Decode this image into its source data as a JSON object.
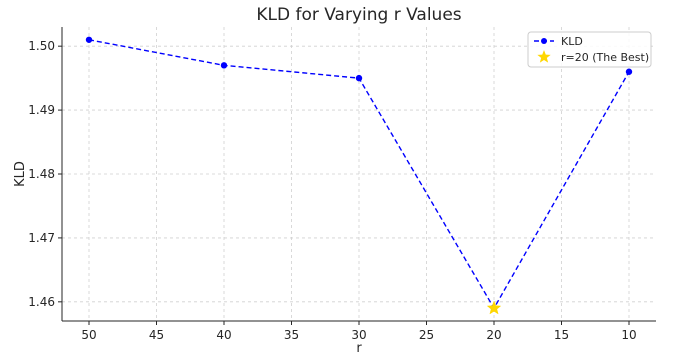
{
  "chart_data": {
    "type": "line",
    "title": "KLD for Varying r Values",
    "xlabel": "r",
    "ylabel": "KLD",
    "x_inverted": true,
    "xlim": [
      52.0,
      8.0
    ],
    "ylim": [
      1.457,
      1.503
    ],
    "x_ticks": [
      50,
      45,
      40,
      35,
      30,
      25,
      20,
      15,
      10
    ],
    "y_ticks": [
      1.46,
      1.47,
      1.48,
      1.49,
      1.5
    ],
    "x_tick_labels": [
      "50",
      "45",
      "40",
      "35",
      "30",
      "25",
      "20",
      "15",
      "10"
    ],
    "y_tick_labels": [
      "1.46",
      "1.47",
      "1.48",
      "1.49",
      "1.50"
    ],
    "grid": true,
    "legend_position": "top-right",
    "series": [
      {
        "name": "KLD",
        "style": "dashed line with circle markers",
        "color": "#0000ff",
        "x": [
          50,
          40,
          30,
          20,
          10
        ],
        "y": [
          1.501,
          1.497,
          1.495,
          1.459,
          1.496
        ]
      }
    ],
    "highlight": {
      "name": "r=20 (The Best)",
      "marker": "star",
      "color": "#ffd700",
      "x": 20,
      "y": 1.459
    }
  }
}
